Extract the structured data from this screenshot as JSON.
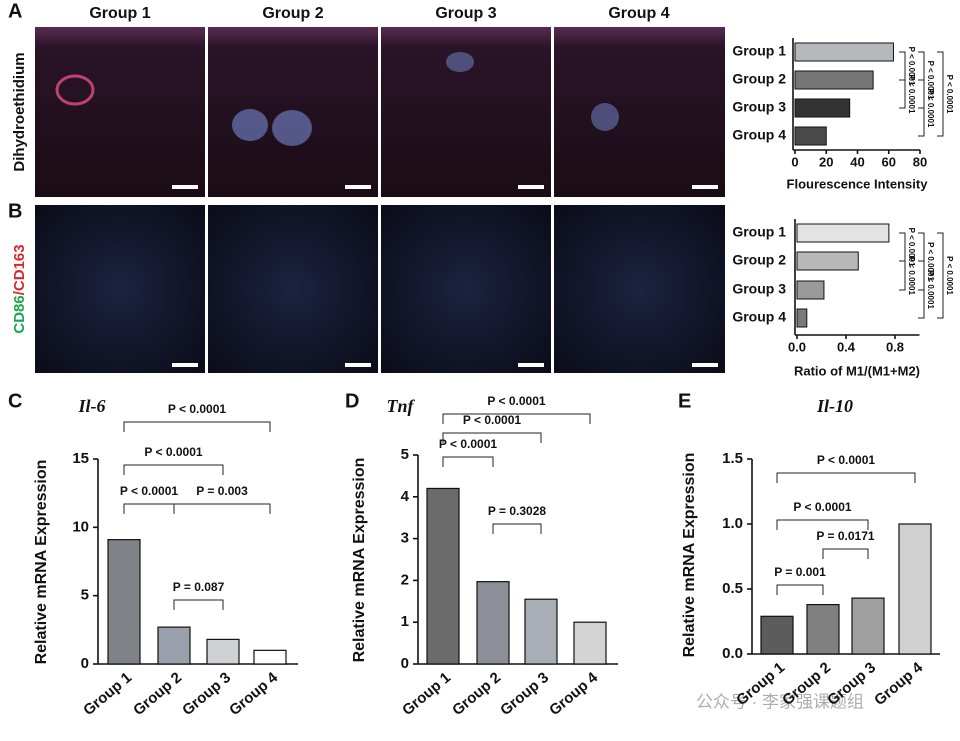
{
  "panel_labels": [
    "A",
    "B",
    "C",
    "D",
    "E"
  ],
  "column_titles": [
    "Group 1",
    "Group 2",
    "Group 3",
    "Group 4"
  ],
  "row_label_a": "Dihydroethidium",
  "row_label_b": [
    "CD86",
    "/CD163"
  ],
  "watermark": "公众号 · 李家强课题组",
  "chart_data": [
    {
      "type": "bar",
      "orientation": "horizontal",
      "xlabel": "Flourescence Intensity",
      "categories": [
        "Group 1",
        "Group 2",
        "Group 3",
        "Group 4"
      ],
      "values": [
        63,
        50,
        35,
        20
      ],
      "colors": [
        "#b5b8bd",
        "#767676",
        "#333333",
        "#4a4a4a"
      ],
      "xlim": [
        0,
        80
      ],
      "xticks": [
        0,
        20,
        40,
        60,
        80
      ],
      "annotations": [
        "P < 0.0001",
        "P < 0.0001",
        "P < 0.0001",
        "P < 0.0001",
        "P < 0.0001"
      ]
    },
    {
      "type": "bar",
      "orientation": "horizontal",
      "xlabel": "Ratio of M1/(M1+M2)",
      "categories": [
        "Group 1",
        "Group 2",
        "Group 3",
        "Group 4"
      ],
      "values": [
        0.75,
        0.5,
        0.22,
        0.08
      ],
      "colors": [
        "#e3e3e3",
        "#b8b8b8",
        "#9a9a9a",
        "#7a7a7a"
      ],
      "xlim": [
        0,
        1.0
      ],
      "xticks": [
        {
          "value": 0,
          "label": "0.0"
        },
        {
          "value": 0.4,
          "label": "0.4"
        },
        {
          "value": 0.8,
          "label": "0.8"
        }
      ],
      "annotations": [
        "P < 0.0001",
        "P < 0.0001",
        "P < 0.0001",
        "P < 0.0001",
        "P < 0.0001"
      ]
    },
    {
      "type": "bar",
      "title": "Il-6",
      "ylabel": "Relative mRNA Expression",
      "categories": [
        "Group 1",
        "Group 2",
        "Group 3",
        "Group 4"
      ],
      "values": [
        9.1,
        2.7,
        1.8,
        1.0
      ],
      "colors": [
        "#7f8388",
        "#9aa0ab",
        "#cfd0d4",
        "#ffffff"
      ],
      "ylim": [
        0,
        15
      ],
      "yticks": [
        0,
        5,
        10,
        15
      ],
      "annotations": [
        "P < 0.0001",
        "P < 0.0001",
        "P < 0.0001",
        "P = 0.003",
        "P = 0.087"
      ]
    },
    {
      "type": "bar",
      "title": "Tnf",
      "ylabel": "Relative mRNA Expression",
      "categories": [
        "Group 1",
        "Group 2",
        "Group 3",
        "Group 4"
      ],
      "values": [
        4.2,
        1.97,
        1.55,
        1.0
      ],
      "colors": [
        "#6b6b6b",
        "#8c8f97",
        "#a9adb6",
        "#d4d4d4"
      ],
      "ylim": [
        0,
        5
      ],
      "yticks": [
        0,
        1,
        2,
        3,
        4,
        5
      ],
      "annotations": [
        "P < 0.0001",
        "P < 0.0001",
        "P < 0.0001",
        "P = 0.3028"
      ]
    },
    {
      "type": "bar",
      "title": "Il-10",
      "ylabel": "Relative mRNA Expression",
      "categories": [
        "Group 1",
        "Group 2",
        "Group 3",
        "Group 4"
      ],
      "values": [
        0.29,
        0.38,
        0.43,
        1.0
      ],
      "colors": [
        "#5c5c5c",
        "#808080",
        "#a0a0a0",
        "#d0d0d0"
      ],
      "ylim": [
        0,
        1.5
      ],
      "yticks": [
        {
          "value": 0,
          "label": "0.0"
        },
        {
          "value": 0.5,
          "label": "0.5"
        },
        {
          "value": 1.0,
          "label": "1.0"
        },
        {
          "value": 1.5,
          "label": "1.5"
        }
      ],
      "annotations": [
        "P < 0.0001",
        "P < 0.0001",
        "P = 0.0171",
        "P = 0.001"
      ]
    }
  ]
}
